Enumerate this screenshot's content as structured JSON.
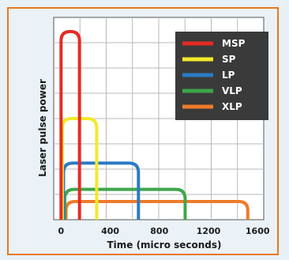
{
  "chart_data": {
    "type": "line",
    "title": "",
    "xlabel": "Time  (micro seconds)",
    "ylabel": "Laser pulse power",
    "xlim": [
      -60,
      1650
    ],
    "ylim": [
      0,
      1.0
    ],
    "x_ticks": [
      0,
      400,
      800,
      1200,
      1600
    ],
    "x_tick_labels": [
      "0",
      "400",
      "800",
      "1200",
      "1600"
    ],
    "grid": true,
    "legend_position": "top-right",
    "series": [
      {
        "name": "MSP",
        "color": "#e42b25",
        "start": 0,
        "end": 150,
        "level": 0.93
      },
      {
        "name": "SP",
        "color": "#f2ea2a",
        "start": 10,
        "end": 290,
        "level": 0.5
      },
      {
        "name": "LP",
        "color": "#2a7bc3",
        "start": 20,
        "end": 630,
        "level": 0.28
      },
      {
        "name": "VLP",
        "color": "#3ea64a",
        "start": 30,
        "end": 1010,
        "level": 0.15
      },
      {
        "name": "XLP",
        "color": "#ee7a2a",
        "start": 40,
        "end": 1520,
        "level": 0.09
      }
    ]
  }
}
